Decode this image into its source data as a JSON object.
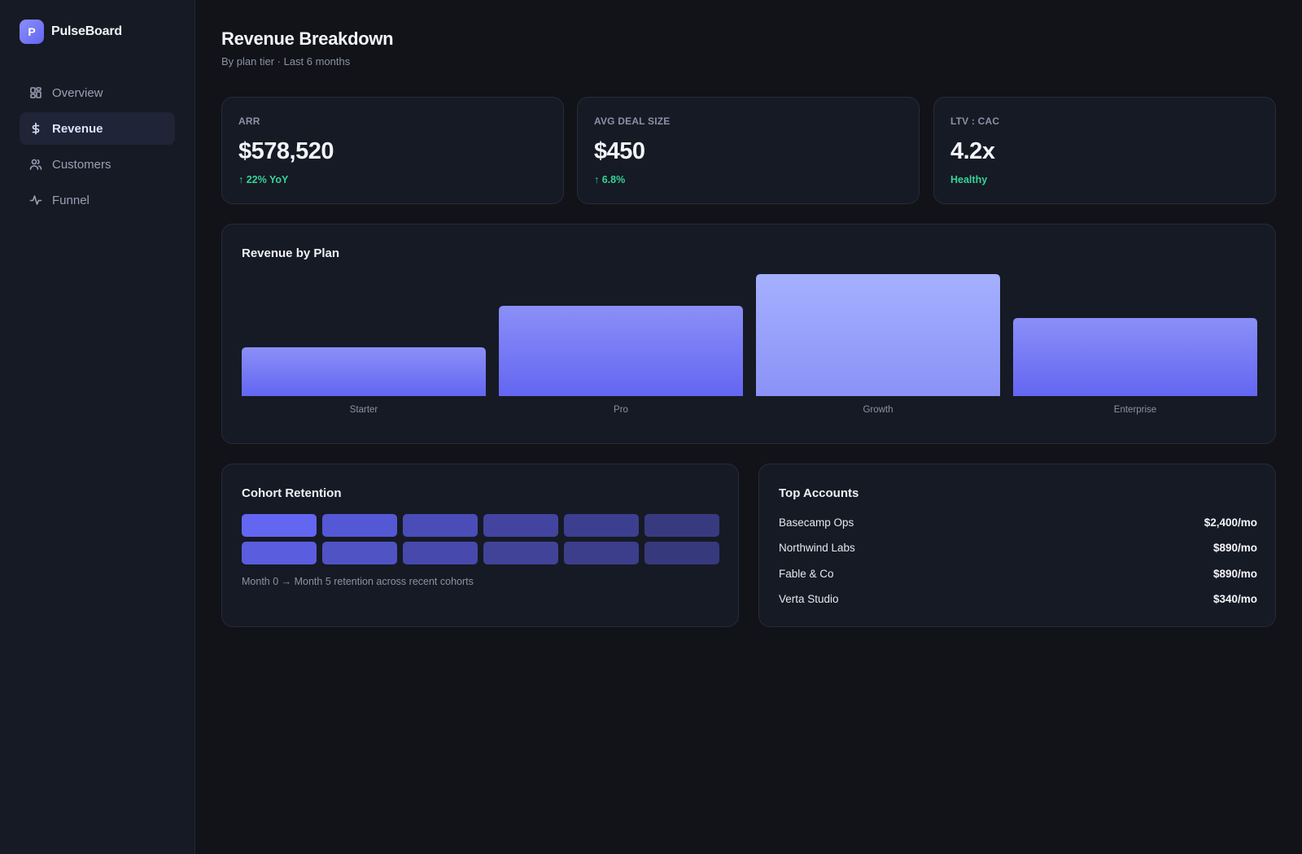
{
  "app": {
    "logo_letter": "P",
    "name": "PulseBoard"
  },
  "sidebar": {
    "items": [
      {
        "label": "Overview",
        "icon": "grid-icon",
        "active": false
      },
      {
        "label": "Revenue",
        "icon": "dollar-icon",
        "active": true
      },
      {
        "label": "Customers",
        "icon": "users-icon",
        "active": false
      },
      {
        "label": "Funnel",
        "icon": "activity-icon",
        "active": false
      }
    ]
  },
  "header": {
    "title": "Revenue Breakdown",
    "subtitle": "By plan tier · Last 6 months"
  },
  "kpis": [
    {
      "label": "ARR",
      "value": "$578,520",
      "delta": "↑ 22% YoY"
    },
    {
      "label": "AVG DEAL SIZE",
      "value": "$450",
      "delta": "↑ 6.8%"
    },
    {
      "label": "LTV : CAC",
      "value": "4.2x",
      "delta": "Healthy"
    }
  ],
  "revenue_chart": {
    "title": "Revenue by Plan"
  },
  "chart_data": {
    "type": "bar",
    "categories": [
      "Starter",
      "Pro",
      "Growth",
      "Enterprise"
    ],
    "values": [
      40,
      74,
      100,
      64
    ],
    "ylim": [
      0,
      100
    ],
    "grid": false,
    "title": "Revenue by Plan",
    "xlabel": "",
    "ylabel": "",
    "colors": {
      "bar_top": "#8b8ff7",
      "bar_bottom": "#6366f1",
      "highlight_top": "#a5b0ff",
      "highlight_bottom": "#8a92f6"
    }
  },
  "cohort": {
    "title": "Cohort Retention",
    "note": "Month 0 → Month 5 retention across recent cohorts",
    "rows": [
      [
        "#6366f1",
        "#5558d4",
        "#4a4cb8",
        "#42449f",
        "#3c3e8f",
        "#383a80"
      ],
      [
        "#5a5dde",
        "#5053c4",
        "#4749ad",
        "#414399",
        "#3c3e8c",
        "#37397d"
      ]
    ]
  },
  "top_accounts": {
    "title": "Top Accounts",
    "rows": [
      {
        "name": "Basecamp Ops",
        "value": "$2,400/mo"
      },
      {
        "name": "Northwind Labs",
        "value": "$890/mo"
      },
      {
        "name": "Fable & Co",
        "value": "$890/mo"
      },
      {
        "name": "Verta Studio",
        "value": "$340/mo"
      }
    ]
  }
}
